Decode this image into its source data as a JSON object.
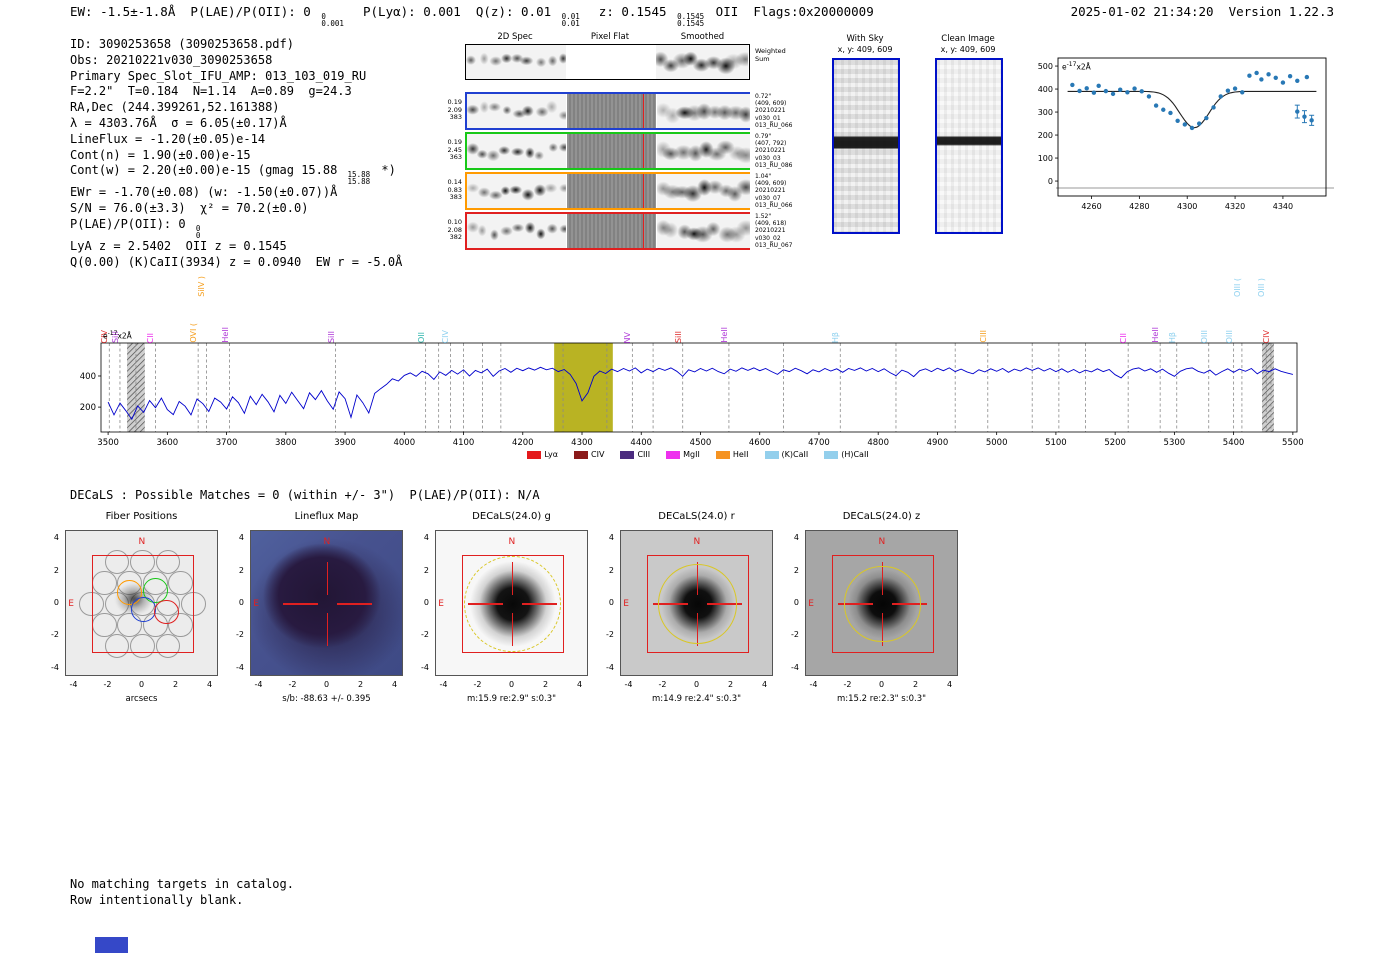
{
  "header": {
    "ew": "EW: -1.5±-1.8Å",
    "plae": {
      "pre": "P(LAE)/P(OII): 0",
      "hi": "0",
      "lo": "0.001"
    },
    "plya": "P(Lyα): 0.001",
    "qz": {
      "pre": "Q(z): 0.01",
      "hi": "0.01",
      "lo": "0.01"
    },
    "z": {
      "pre": "z: 0.1545",
      "hi": "0.1545",
      "lo": "0.1545",
      "post": "OII"
    },
    "flags": "Flags:0x20000009",
    "datetime": "2025-01-02 21:34:20",
    "version": "Version 1.22.3"
  },
  "info_lines": [
    {
      "text": "ID: 3090253658 (3090253658.pdf)"
    },
    {
      "text": "Obs: 20210221v030_3090253658"
    },
    {
      "text": "Primary Spec_Slot_IFU_AMP: 013_103_019_RU"
    },
    {
      "text": "F=2.2\"  T=0.184  N=1.14  A=0.89  g=24.3"
    },
    {
      "text": "RA,Dec (244.399261,52.161388)"
    },
    {
      "text": "λ = 4303.76Å  σ = 6.05(±0.17)Å"
    },
    {
      "text": "LineFlux = -1.20(±0.05)e-14"
    },
    {
      "text": "Cont(n) = 1.90(±0.00)e-15"
    },
    {
      "pre": "Cont(w) = 2.20(±0.00)e-15 (gmag 15.88",
      "hi": "15.88",
      "lo": "15.88",
      "post": "*)"
    },
    {
      "text": "EWr = -1.70(±0.08) (w: -1.50(±0.07))Å"
    },
    {
      "text": "S/N = 76.0(±3.3)  χ² = 70.2(±0.0)"
    },
    {
      "pre": "P(LAE)/P(OII): 0",
      "hi": "0",
      "lo": "0"
    },
    {
      "text": "LyA z = 2.5402  OII z = 0.1545"
    },
    {
      "text": "Q(0.00) (K)CaII(3934) z = 0.0940  EW r = -5.0Å"
    }
  ],
  "spec2d": {
    "col_titles": [
      "2D Spec",
      "Pixel Flat",
      "Smoothed"
    ],
    "weighted_label": [
      "Weighted",
      "Sum"
    ],
    "rows": [
      {
        "left": [
          "0.19",
          "2.09",
          "383"
        ],
        "color": "#2040d0",
        "right": [
          "0.72\"",
          "(409, 609)",
          "20210221",
          "v030_01",
          "013_RU_066"
        ]
      },
      {
        "left": [
          "0.19",
          "2.45",
          "363"
        ],
        "color": "#18c818",
        "right": [
          "0.79\"",
          "(407, 792)",
          "20210221",
          "v030_03",
          "013_RU_086"
        ]
      },
      {
        "left": [
          "0.14",
          "0.83",
          "383"
        ],
        "color": "#ff9a00",
        "right": [
          "1.04\"",
          "(409, 609)",
          "20210221",
          "v030_07",
          "013_RU_066"
        ]
      },
      {
        "left": [
          "0.10",
          "2.08",
          "382"
        ],
        "color": "#e02020",
        "right": [
          "1.52\"",
          "(409, 618)",
          "20210221",
          "v030_02",
          "013_RU_067"
        ]
      }
    ]
  },
  "sky_panels": [
    {
      "title": "With Sky",
      "subtitle": "x, y: 409, 609"
    },
    {
      "title": "Clean Image",
      "subtitle": "x, y: 409, 609"
    }
  ],
  "chart_data": [
    {
      "type": "scatter",
      "annotation": {
        "base": "e",
        "exp": "-17",
        "suffix": "x2Å"
      },
      "xlim": [
        4246,
        4358
      ],
      "ylim": [
        -65,
        535
      ],
      "xticks": [
        4260,
        4280,
        4300,
        4320,
        4340
      ],
      "yticks": [
        0,
        100,
        200,
        300,
        400,
        500
      ],
      "points": [
        [
          4252,
          418
        ],
        [
          4255,
          392
        ],
        [
          4258,
          403
        ],
        [
          4261,
          384
        ],
        [
          4263,
          414
        ],
        [
          4266,
          391
        ],
        [
          4269,
          379
        ],
        [
          4272,
          397
        ],
        [
          4275,
          386
        ],
        [
          4278,
          402
        ],
        [
          4281,
          390
        ],
        [
          4284,
          368
        ],
        [
          4287,
          328
        ],
        [
          4290,
          310
        ],
        [
          4293,
          296
        ],
        [
          4296,
          262
        ],
        [
          4299,
          246
        ],
        [
          4302,
          231
        ],
        [
          4305,
          250
        ],
        [
          4308,
          274
        ],
        [
          4311,
          320
        ],
        [
          4314,
          368
        ],
        [
          4317,
          393
        ],
        [
          4320,
          402
        ],
        [
          4323,
          386
        ],
        [
          4326,
          458
        ],
        [
          4329,
          470
        ],
        [
          4331,
          442
        ],
        [
          4334,
          464
        ],
        [
          4337,
          449
        ],
        [
          4340,
          428
        ],
        [
          4343,
          456
        ],
        [
          4346,
          436
        ],
        [
          4350,
          452
        ]
      ],
      "errorbars": [
        [
          4346,
          302,
          28
        ],
        [
          4349,
          280,
          26
        ],
        [
          4352,
          264,
          22
        ]
      ],
      "model": {
        "continuum": 390,
        "center": 4303,
        "sigma": 6.0,
        "depth": 158
      }
    },
    {
      "type": "line",
      "color": "#0000cc",
      "annotation": {
        "base": "e",
        "exp": "-17",
        "suffix": "x2Å"
      },
      "xlim": [
        3488,
        5507
      ],
      "ylim": [
        40,
        612
      ],
      "xticks": [
        3500,
        3600,
        3700,
        3800,
        3900,
        4000,
        4100,
        4200,
        4300,
        4400,
        4500,
        4600,
        4700,
        4800,
        4900,
        5000,
        5100,
        5200,
        5300,
        5400,
        5500
      ],
      "yticks": [
        200,
        400
      ],
      "emission_band": [
        4253,
        4352
      ],
      "masked_bands": [
        [
          3532,
          3562
        ],
        [
          5448,
          5468
        ]
      ],
      "x_start": 3500,
      "x_step": 10,
      "y": [
        232,
        150,
        226,
        176,
        122,
        208,
        166,
        242,
        196,
        258,
        184,
        152,
        236,
        206,
        150,
        252,
        222,
        172,
        258,
        232,
        188,
        266,
        228,
        160,
        270,
        216,
        282,
        234,
        170,
        276,
        224,
        296,
        242,
        190,
        292,
        248,
        306,
        240,
        186,
        298,
        254,
        134,
        278,
        228,
        162,
        288,
        318,
        346,
        382,
        368,
        404,
        420,
        398,
        430,
        414,
        378,
        426,
        404,
        436,
        412,
        440,
        400,
        436,
        420,
        444,
        398,
        432,
        448,
        424,
        450,
        434,
        452,
        438,
        456,
        440,
        450,
        428,
        442,
        410,
        352,
        240,
        292,
        398,
        432,
        416,
        444,
        428,
        448,
        432,
        452,
        420,
        444,
        428,
        450,
        436,
        452,
        430,
        398,
        440,
        426,
        448,
        432,
        450,
        428,
        414,
        444,
        430,
        452,
        436,
        452,
        434,
        448,
        428,
        410,
        440,
        428,
        450,
        434,
        414,
        440,
        426,
        448,
        432,
        446,
        424,
        448,
        436,
        452,
        432,
        448,
        428,
        446,
        422,
        402,
        438,
        424,
        396,
        434,
        446,
        428,
        450,
        434,
        452,
        428,
        444,
        426,
        414,
        440,
        426,
        446,
        430,
        448,
        424,
        444,
        432,
        452,
        436,
        452,
        432,
        448,
        428,
        446,
        424,
        442,
        420,
        438,
        426,
        446,
        428,
        442,
        408,
        388,
        426,
        444,
        452,
        432,
        446,
        424,
        444,
        418,
        398,
        430,
        446,
        452,
        430,
        418,
        438,
        406,
        428,
        446,
        424,
        444,
        430,
        448,
        414,
        438,
        428,
        446,
        430,
        420,
        410
      ],
      "marker_lines": [
        {
          "label": "CIV",
          "wave": 3502,
          "color": "#e03030"
        },
        {
          "label": "SiII",
          "wave": 3520,
          "color": "#b03ad8"
        },
        {
          "label": "CII",
          "wave": 3580,
          "color": "#ee30ee"
        },
        {
          "label": "OVI (",
          "wave": 3652,
          "color": "#f5a021"
        },
        {
          "label": "SiIV )",
          "wave": 3666,
          "color": "#f5a021",
          "raise": 46
        },
        {
          "label": "HeII",
          "wave": 3705,
          "color": "#b03ad8"
        },
        {
          "label": "SiII",
          "wave": 3884,
          "color": "#b03ad8"
        },
        {
          "label": "OII",
          "wave": 4036,
          "color": "#35b8b0"
        },
        {
          "label": "CIV",
          "wave": 4078,
          "color": "#8fd1ef"
        },
        {
          "label": "NV",
          "wave": 4385,
          "color": "#b03ad8"
        },
        {
          "label": "SiII",
          "wave": 4470,
          "color": "#e03030"
        },
        {
          "label": "HeII",
          "wave": 4548,
          "color": "#b03ad8"
        },
        {
          "label": "Hβ",
          "wave": 4736,
          "color": "#8fd1ef"
        },
        {
          "label": "CIII",
          "wave": 4985,
          "color": "#f5a021"
        },
        {
          "label": "CII",
          "wave": 5222,
          "color": "#ee30ee"
        },
        {
          "label": "HeII",
          "wave": 5276,
          "color": "#b03ad8"
        },
        {
          "label": "Hβ",
          "wave": 5304,
          "color": "#8fd1ef"
        },
        {
          "label": "OIII",
          "wave": 5358,
          "color": "#8fd1ef"
        },
        {
          "label": "OIII",
          "wave": 5400,
          "color": "#8fd1ef"
        },
        {
          "label": "OIII (",
          "wave": 5414,
          "color": "#8fd1ef",
          "raise": 46
        },
        {
          "label": "OIII )",
          "wave": 5455,
          "color": "#8fd1ef",
          "raise": 46
        },
        {
          "label": "CIV",
          "wave": 5463,
          "color": "#e03030"
        }
      ],
      "extra_dashed": [
        3547,
        4058,
        4100,
        4132,
        4163,
        4268,
        4342,
        4420,
        4640,
        4830,
        4930,
        5060,
        5105,
        5150
      ],
      "legend": [
        {
          "label": "Lyα",
          "color": "#e41a1c"
        },
        {
          "label": "CIV",
          "color": "#8b1a1a"
        },
        {
          "label": "CIII",
          "color": "#4b2b7f"
        },
        {
          "label": "MgII",
          "color": "#ee30ee"
        },
        {
          "label": "HeII",
          "color": "#f59322"
        },
        {
          "label": "(K)CaII",
          "color": "#93cfec"
        },
        {
          "label": "(H)CaII",
          "color": "#93cfec"
        }
      ]
    }
  ],
  "cutouts": {
    "header": "DECaLS : Possible Matches = 0 (within +/- 3\")  P(LAE)/P(OII): N/A",
    "ticks": [
      -4,
      -2,
      0,
      2,
      4
    ],
    "compass_n": "N",
    "compass_e": "E",
    "panels": [
      {
        "title": "Fiber Positions",
        "caption": "arcsecs",
        "type": "fibers"
      },
      {
        "title": "Lineflux Map",
        "caption": "s/b: -88.63 +/- 0.395",
        "type": "lineflux"
      },
      {
        "title": "DECaLS(24.0) g",
        "caption": "m:15.9 re:2.9\" s:0.3\"",
        "type": "cutout",
        "bg": "#f7f7f7",
        "blob_size": 86,
        "circle_r": 2.9,
        "dashed": true
      },
      {
        "title": "DECaLS(24.0) r",
        "caption": "m:14.9 re:2.4\" s:0.3\"",
        "type": "cutout",
        "bg": "#c9c9c9",
        "blob_size": 74,
        "circle_r": 2.4,
        "dashed": false
      },
      {
        "title": "DECaLS(24.0) z",
        "caption": "m:15.2 re:2.3\" s:0.3\"",
        "type": "cutout",
        "bg": "#a6a6a6",
        "blob_size": 70,
        "circle_r": 2.3,
        "dashed": false
      }
    ]
  },
  "footer": [
    "No matching targets in catalog.",
    "Row intentionally blank."
  ],
  "colors": {
    "panel_frame_blue": "#0010c8",
    "spectrum_blue": "#0000cc",
    "emission_band_yellow": "#b9b323",
    "marker_red": "#e02020",
    "aperture_yellow": "#d9c727",
    "footer_box_blue": "#3548c8"
  }
}
